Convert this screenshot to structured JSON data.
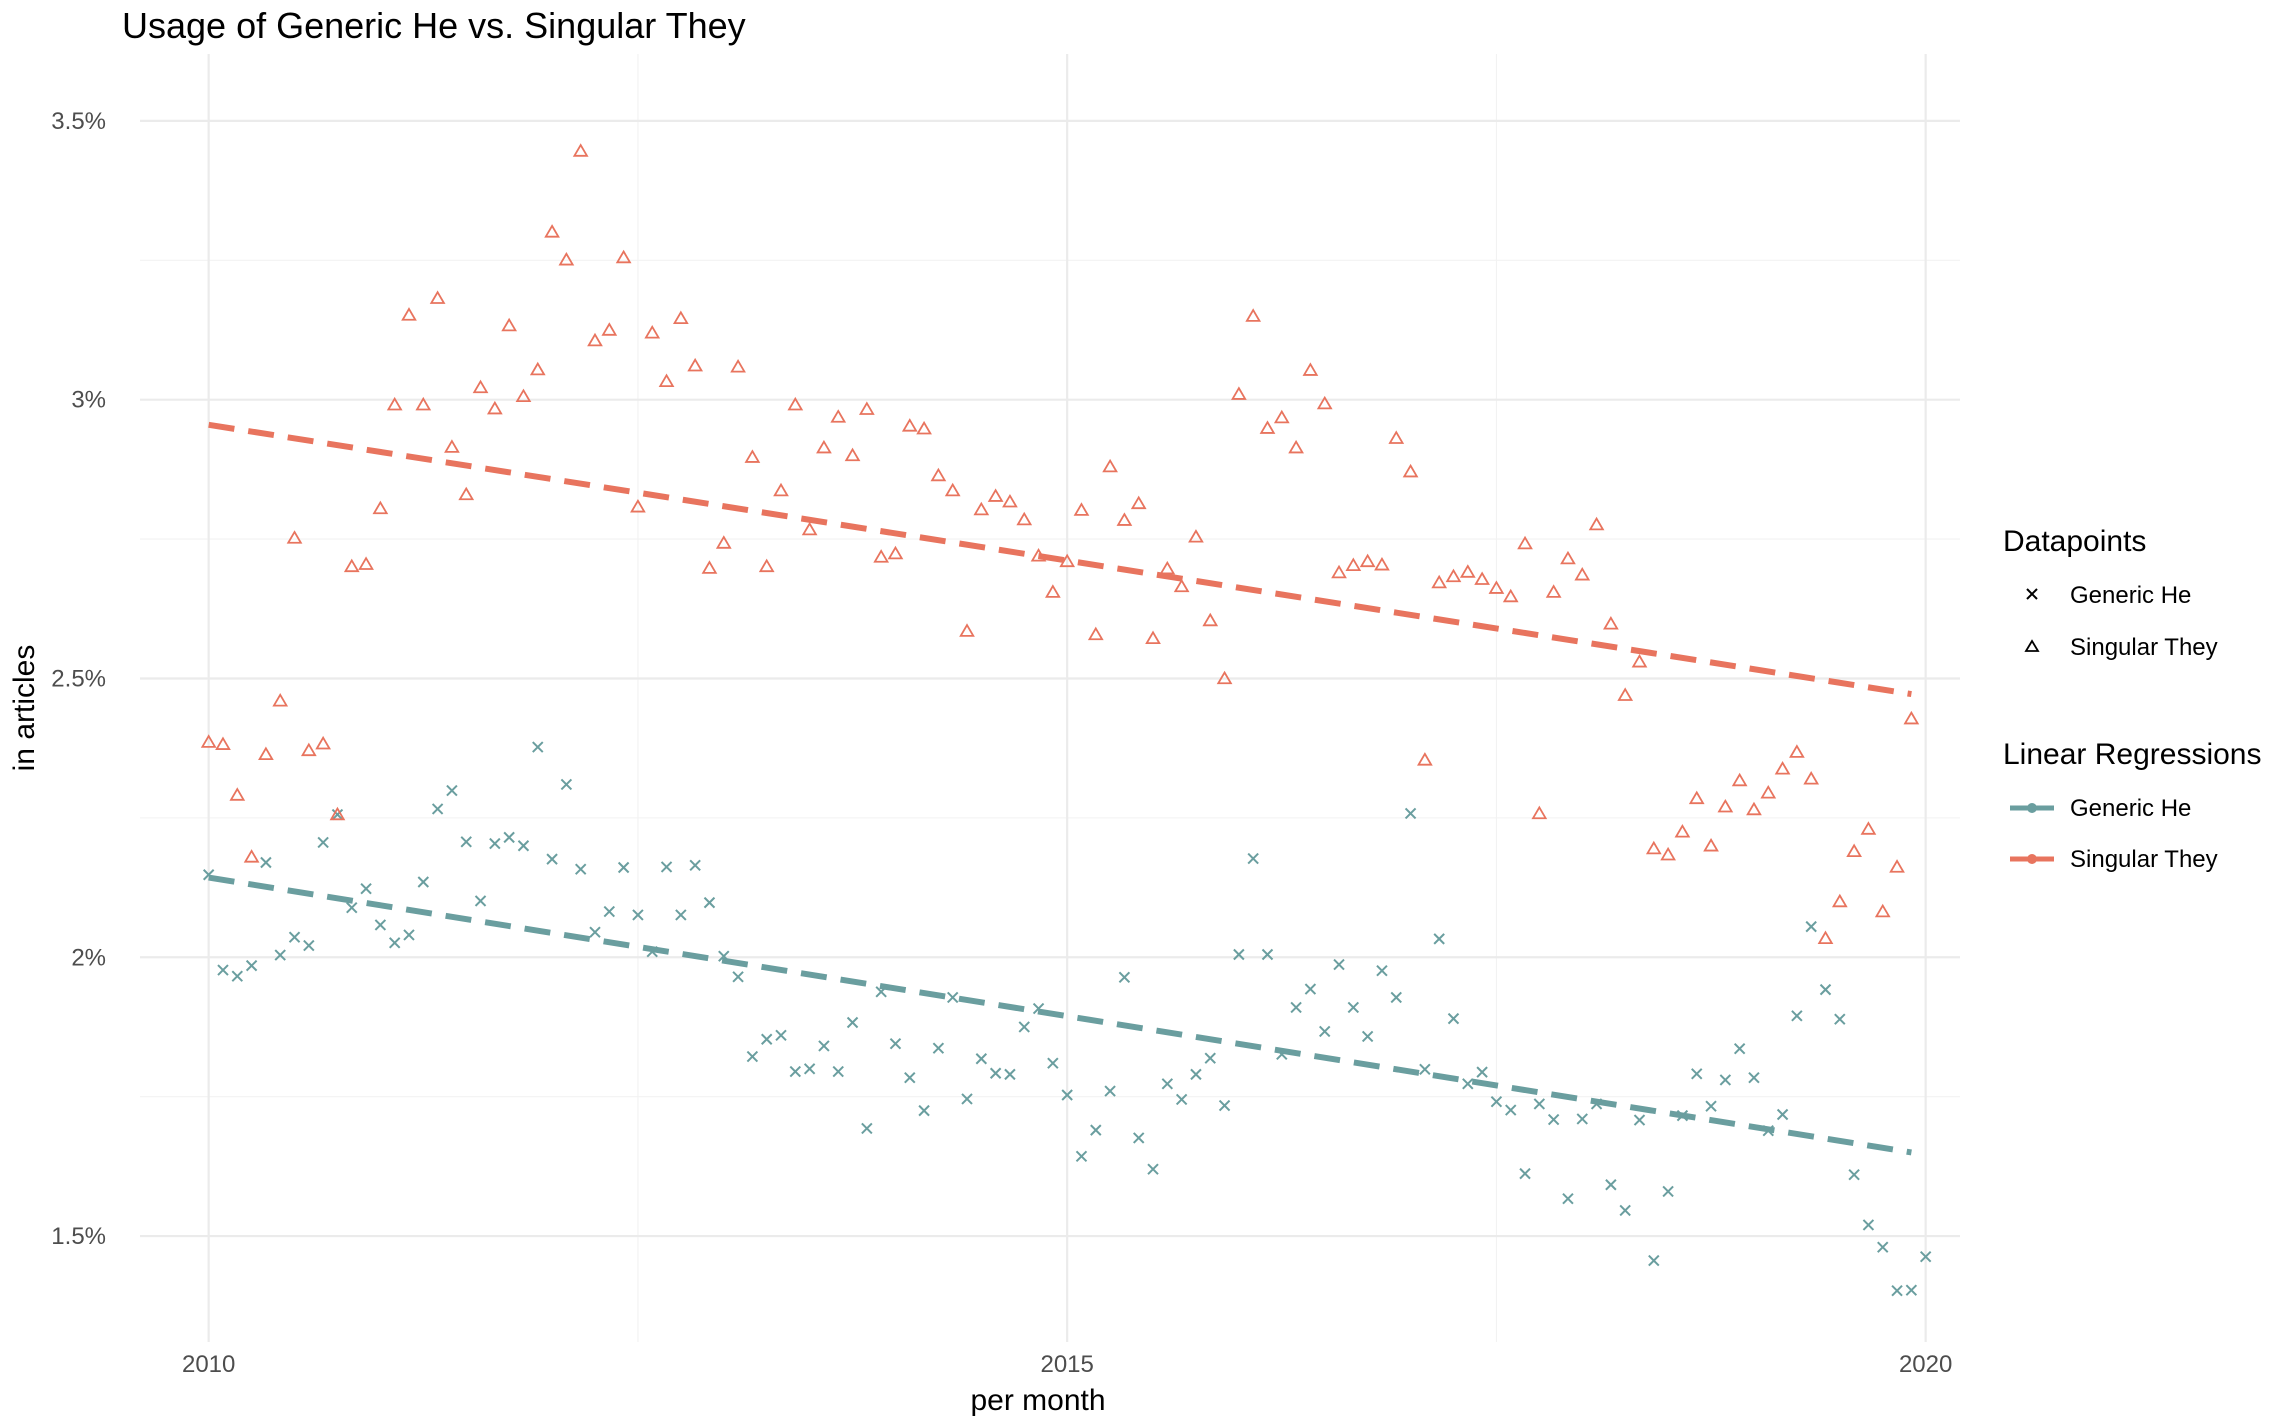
{
  "chart_data": {
    "type": "scatter",
    "title": "Usage of Generic He vs. Singular They",
    "xlabel": "per month",
    "ylabel": "in articles",
    "xlim": [
      2009.6,
      2020.2
    ],
    "ylim": [
      0.0131,
      0.0362
    ],
    "x_ticks": [
      2010,
      2015,
      2020
    ],
    "x_tick_labels": [
      "2010",
      "2015",
      "2020"
    ],
    "y_ticks": [
      0.015,
      0.02,
      0.025,
      0.03,
      0.035
    ],
    "y_tick_labels": [
      "1.5%",
      "2%",
      "2.5%",
      "3%",
      "3.5%"
    ],
    "grid": true,
    "legend_position": "right",
    "legend_datapoints_title": "Datapoints",
    "legend_regressions_title": "Linear Regressions",
    "series": [
      {
        "name": "Generic He",
        "marker": "x",
        "color": "#6A9E9F",
        "x_start": 2010.0,
        "x_step_months": 1,
        "values": [
          0.02148,
          0.01977,
          0.01966,
          0.01985,
          0.0217,
          0.02004,
          0.02036,
          0.02021,
          0.02206,
          0.02256,
          0.02089,
          0.02123,
          0.02058,
          0.02026,
          0.0204,
          0.02135,
          0.02266,
          0.02299,
          0.02207,
          0.02101,
          0.02204,
          0.02215,
          0.022,
          0.02377,
          0.02176,
          0.0231,
          0.02158,
          0.02045,
          0.02082,
          0.02161,
          0.02076,
          0.0201,
          0.02162,
          0.02076,
          0.02165,
          0.02098,
          0.02002,
          0.01965,
          0.01822,
          0.01853,
          0.0186,
          0.01795,
          0.018,
          0.01841,
          0.01795,
          0.01883,
          0.01693,
          0.01938,
          0.01845,
          0.01784,
          0.01725,
          0.01837,
          0.01928,
          0.01746,
          0.01818,
          0.01792,
          0.0179,
          0.01875,
          0.01908,
          0.0181,
          0.01753,
          0.01643,
          0.0169,
          0.0176,
          0.01964,
          0.01676,
          0.0162,
          0.01773,
          0.01745,
          0.0179,
          0.01819,
          0.01734,
          0.02005,
          0.02177,
          0.02005,
          0.01826,
          0.0191,
          0.01943,
          0.01867,
          0.01987,
          0.0191,
          0.01858,
          0.01976,
          0.01928,
          0.02258,
          0.01799,
          0.02033,
          0.0189,
          0.01773,
          0.01794,
          0.01741,
          0.01726,
          0.01612,
          0.01737,
          0.01709,
          0.01567,
          0.0171,
          0.01737,
          0.01592,
          0.01546,
          0.01708,
          0.01456,
          0.0158,
          0.01716,
          0.01791,
          0.01733,
          0.0178,
          0.01836,
          0.01784,
          0.01689,
          0.01718,
          0.01895,
          0.02055,
          0.01942,
          0.01889,
          0.0161,
          0.0152,
          0.0148,
          0.01402,
          0.01403,
          0.01463
        ]
      },
      {
        "name": "Singular They",
        "marker": "triangle",
        "color": "#E8745E",
        "x_start": 2010.0,
        "x_step_months": 1,
        "values": [
          0.02386,
          0.02382,
          0.02291,
          0.0218,
          0.02364,
          0.0246,
          0.02752,
          0.02371,
          0.02383,
          0.02256,
          0.02701,
          0.02705,
          0.02805,
          0.02991,
          0.03152,
          0.02991,
          0.03182,
          0.02915,
          0.0283,
          0.03022,
          0.02984,
          0.03133,
          0.03006,
          0.03054,
          0.03301,
          0.03251,
          0.03446,
          0.03106,
          0.03125,
          0.03255,
          0.02808,
          0.0312,
          0.03033,
          0.03146,
          0.03061,
          0.02698,
          0.02743,
          0.03059,
          0.02897,
          0.02701,
          0.02837,
          0.02991,
          0.02767,
          0.02914,
          0.02969,
          0.029,
          0.02983,
          0.02718,
          0.02724,
          0.02953,
          0.02948,
          0.02864,
          0.02837,
          0.02585,
          0.02803,
          0.02827,
          0.02817,
          0.02785,
          0.0272,
          0.02655,
          0.0271,
          0.02802,
          0.02579,
          0.0288,
          0.02784,
          0.02814,
          0.02572,
          0.02697,
          0.02665,
          0.02754,
          0.02604,
          0.025,
          0.0301,
          0.0315,
          0.02949,
          0.02968,
          0.02914,
          0.03053,
          0.02993,
          0.0269,
          0.02703,
          0.0271,
          0.02704,
          0.02931,
          0.02871,
          0.02354,
          0.02672,
          0.02683,
          0.02691,
          0.02678,
          0.02662,
          0.02647,
          0.02742,
          0.02258,
          0.02655,
          0.02715,
          0.02686,
          0.02776,
          0.02598,
          0.0247,
          0.0253,
          0.02195,
          0.02184,
          0.02225,
          0.02285,
          0.022,
          0.0227,
          0.02317,
          0.02265,
          0.02295,
          0.02338,
          0.02368,
          0.0232,
          0.02034,
          0.021,
          0.0219,
          0.0223,
          0.02082,
          0.02162,
          0.02428
        ]
      }
    ],
    "regressions": [
      {
        "name": "Generic He",
        "color": "#6A9E9F",
        "x": [
          2010.0,
          2019.917
        ],
        "y": [
          0.02143,
          0.0165
        ]
      },
      {
        "name": "Singular They",
        "color": "#E8745E",
        "x": [
          2010.0,
          2019.917
        ],
        "y": [
          0.02955,
          0.02472
        ]
      }
    ]
  }
}
